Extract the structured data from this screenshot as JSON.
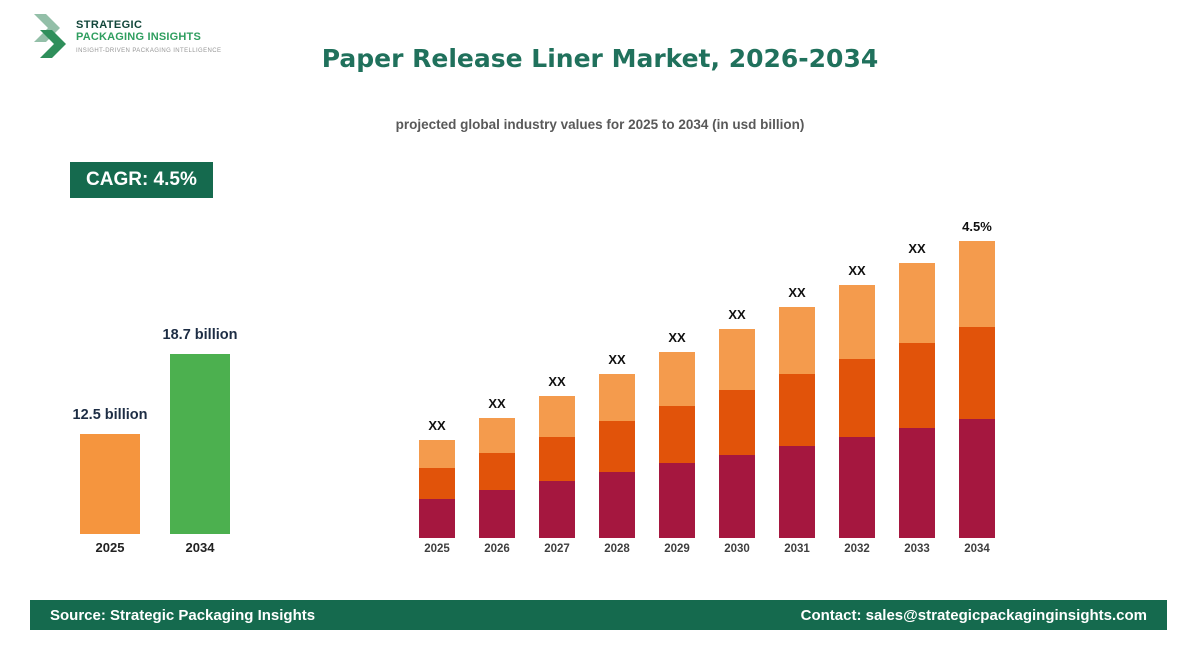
{
  "logo": {
    "icon": "double-chevron-right-icon",
    "line1": "STRATEGIC",
    "line2": "PACKAGING INSIGHTS",
    "tagline": "INSIGHT-DRIVEN PACKAGING INTELLIGENCE"
  },
  "header": {
    "title": "Paper Release Liner Market, 2026-2034",
    "subtitle": "projected global industry values for 2025 to 2034 (in usd billion)"
  },
  "cagr_badge": "CAGR: 4.5%",
  "summary_chart": {
    "type": "bar",
    "bars": [
      {
        "year": "2025",
        "label": "12.5 billion",
        "value": 12.5,
        "color": "#f5953e"
      },
      {
        "year": "2034",
        "label": "18.7 billion",
        "value": 18.7,
        "color": "#4cb04f"
      }
    ]
  },
  "chart_data": {
    "type": "bar",
    "stacked": true,
    "title": "Paper Release Liner Market, 2026-2034",
    "subtitle": "projected global industry values for 2025 to 2034 (in usd billion)",
    "categories": [
      "2025",
      "2026",
      "2027",
      "2028",
      "2029",
      "2030",
      "2031",
      "2032",
      "2033",
      "2034"
    ],
    "totals_usd_billion": [
      12.5,
      13.1,
      13.7,
      14.3,
      14.9,
      15.6,
      16.3,
      17.0,
      17.8,
      18.7
    ],
    "bar_labels": [
      "XX",
      "XX",
      "XX",
      "XX",
      "XX",
      "XX",
      "XX",
      "XX",
      "XX",
      "4.5%"
    ],
    "cagr": "4.5%",
    "legend": "none",
    "grid": false,
    "segments": [
      {
        "name": "bottom",
        "color": "#a5173f",
        "fraction": 0.4
      },
      {
        "name": "middle",
        "color": "#e1530a",
        "fraction": 0.31
      },
      {
        "name": "top",
        "color": "#f49b4d",
        "fraction": 0.29
      }
    ]
  },
  "footer": {
    "source": "Source: Strategic Packaging Insights",
    "contact": "Contact: sales@strategicpackaginginsights.com"
  }
}
